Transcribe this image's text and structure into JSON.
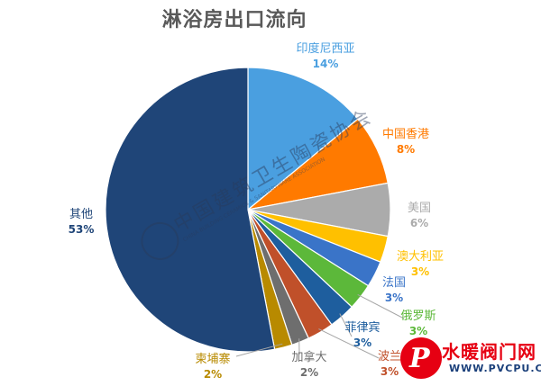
{
  "chart_data": {
    "type": "pie",
    "title": "淋浴房出口流向",
    "start_angle_deg": 0,
    "direction": "clockwise",
    "slices": [
      {
        "label": "印度尼西亚",
        "value": 14,
        "pct_label": "14%",
        "color": "#4A9FE0"
      },
      {
        "label": "中国香港",
        "value": 8,
        "pct_label": "8%",
        "color": "#FF7A00"
      },
      {
        "label": "美国",
        "value": 6,
        "pct_label": "6%",
        "color": "#ABABAB"
      },
      {
        "label": "澳大利亚",
        "value": 3,
        "pct_label": "3%",
        "color": "#FFC000"
      },
      {
        "label": "法国",
        "value": 3,
        "pct_label": "3%",
        "color": "#3A74C8"
      },
      {
        "label": "俄罗斯",
        "value": 3,
        "pct_label": "3%",
        "color": "#5CB83A"
      },
      {
        "label": "菲律宾",
        "value": 3,
        "pct_label": "3%",
        "color": "#1E5E9E"
      },
      {
        "label": "波兰",
        "value": 3,
        "pct_label": "3%",
        "color": "#C0502A"
      },
      {
        "label": "加拿大",
        "value": 2,
        "pct_label": "2%",
        "color": "#6E6E6E"
      },
      {
        "label": "柬埔寨",
        "value": 2,
        "pct_label": "2%",
        "color": "#B88A00"
      },
      {
        "label": "其他",
        "value": 53,
        "pct_label": "53%",
        "color": "#1F4578"
      }
    ]
  },
  "watermark": {
    "text": "中国建筑卫生陶瓷协会",
    "subtext": "CHINA BUILDING CERAMICS & SANITARYWARE ASSOCIATION"
  },
  "brand": {
    "name": "水暖阀门网",
    "url": "WWW.PVCPU.COM",
    "logo_text": "P"
  }
}
